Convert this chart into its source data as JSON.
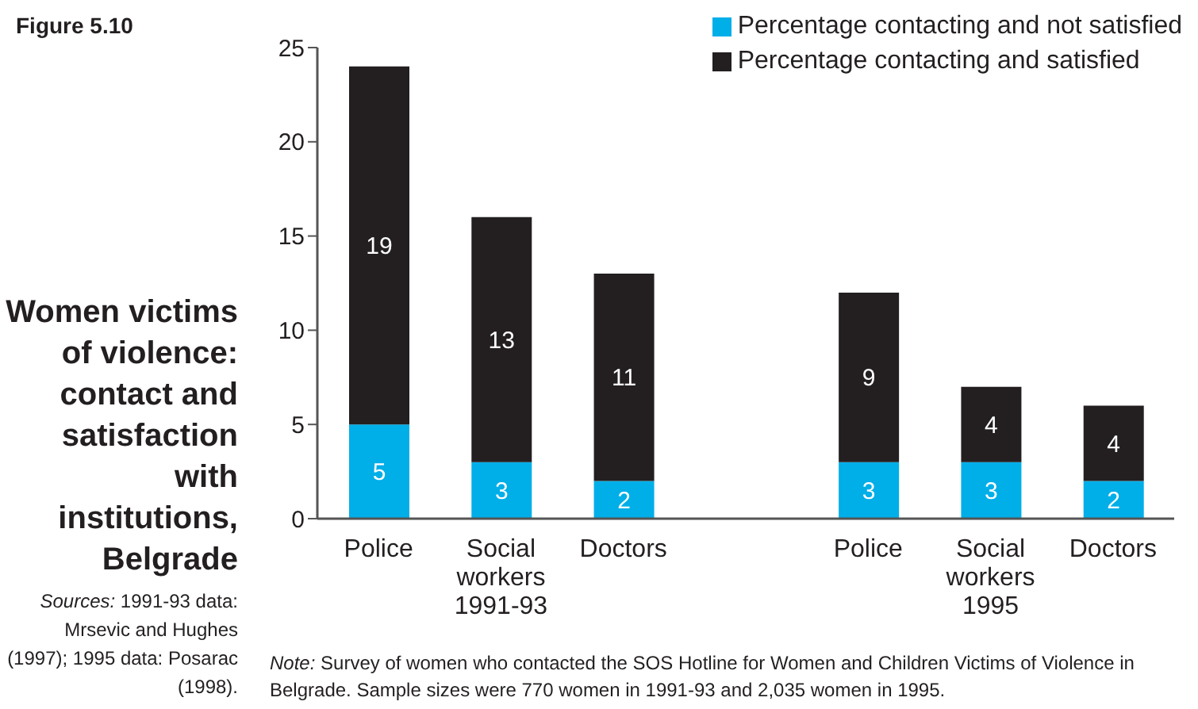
{
  "chart_data": {
    "type": "bar",
    "title": "Women victims of violence: contact and satisfaction with institutions, Belgrade",
    "categories": [
      "Police",
      "Social workers",
      "Doctors",
      null,
      "Police",
      "Social workers",
      "Doctors"
    ],
    "series": [
      {
        "name": "Percentage contacting and not satisfied",
        "color": "#00aee8",
        "values": [
          5,
          3,
          2,
          null,
          3,
          3,
          2
        ]
      },
      {
        "name": "Percentage contacting and satisfied",
        "color": "#231f20",
        "values": [
          19,
          13,
          11,
          null,
          9,
          4,
          4
        ]
      }
    ],
    "stacked": true,
    "data_labels": true,
    "ylim": [
      0,
      25
    ],
    "yticks": [
      0,
      5,
      10,
      15,
      20,
      25
    ],
    "grid": false,
    "legend": "top right",
    "annotations": [
      "Figure 5.10",
      "1991-93",
      "1995",
      "Sources: 1991-93 data: Mrsevic and Hughes (1997); 1995 data: Posarac (1998).",
      "Note: Survey of women who contacted the SOS Hotline for Women and Children Victims of Violence in Belgrade. Sample sizes were 770 women in 1991-93 and 2,035 women in 1995."
    ]
  }
}
